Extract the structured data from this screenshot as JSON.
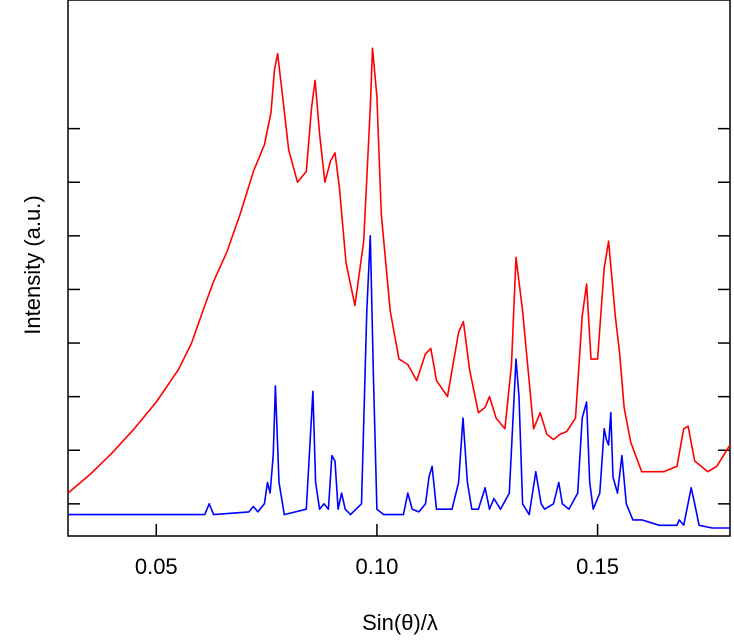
{
  "chart_data": {
    "type": "line",
    "title": "",
    "xlabel": "Sin(θ)/λ",
    "ylabel": "Intensity (a.u.)",
    "xlim": [
      0.03,
      0.18
    ],
    "ylim": [
      0,
      10
    ],
    "grid": false,
    "legend": "none",
    "x_tick_labels": [
      "0.05",
      "0.10",
      "0.15"
    ],
    "x_ticks": [
      0.05,
      0.1,
      0.15
    ],
    "y_tick_labels_shown": false,
    "y_ticks": [
      0.6,
      1.6,
      2.6,
      3.6,
      4.6,
      5.6,
      6.6,
      7.6
    ],
    "series": [
      {
        "color": "#ff0000",
        "x": [
          0.03,
          0.035,
          0.04,
          0.045,
          0.05,
          0.055,
          0.058,
          0.061,
          0.063,
          0.066,
          0.069,
          0.072,
          0.0745,
          0.076,
          0.0768,
          0.0775,
          0.0785,
          0.08,
          0.082,
          0.084,
          0.0852,
          0.086,
          0.087,
          0.0882,
          0.0895,
          0.0905,
          0.0915,
          0.093,
          0.095,
          0.097,
          0.0985,
          0.099,
          0.1,
          0.101,
          0.103,
          0.105,
          0.107,
          0.109,
          0.111,
          0.1122,
          0.1135,
          0.116,
          0.1185,
          0.1196,
          0.121,
          0.123,
          0.1245,
          0.1255,
          0.127,
          0.129,
          0.1305,
          0.1315,
          0.133,
          0.1355,
          0.137,
          0.1385,
          0.14,
          0.1415,
          0.143,
          0.145,
          0.1465,
          0.1475,
          0.1485,
          0.15,
          0.1515,
          0.1525,
          0.154,
          0.155,
          0.156,
          0.1575,
          0.16,
          0.165,
          0.168,
          0.1695,
          0.1705,
          0.172,
          0.175,
          0.177,
          0.18
        ],
        "values": [
          0.8,
          1.15,
          1.55,
          2.0,
          2.5,
          3.1,
          3.6,
          4.3,
          4.75,
          5.3,
          6.0,
          6.8,
          7.3,
          7.9,
          8.7,
          9.0,
          8.3,
          7.2,
          6.6,
          6.8,
          8.0,
          8.5,
          7.5,
          6.6,
          7.0,
          7.15,
          6.5,
          5.1,
          4.3,
          5.5,
          8.0,
          9.1,
          8.2,
          6.0,
          4.2,
          3.3,
          3.2,
          2.9,
          3.4,
          3.5,
          2.9,
          2.6,
          3.8,
          4.0,
          3.1,
          2.3,
          2.4,
          2.6,
          2.2,
          2.0,
          3.2,
          5.2,
          4.2,
          2.0,
          2.3,
          1.9,
          1.8,
          1.9,
          1.95,
          2.2,
          4.1,
          4.7,
          3.3,
          3.3,
          5.0,
          5.5,
          4.1,
          3.4,
          2.4,
          1.75,
          1.2,
          1.2,
          1.3,
          2.0,
          2.05,
          1.4,
          1.2,
          1.3,
          1.7
        ]
      },
      {
        "color": "#0000ff",
        "x": [
          0.03,
          0.055,
          0.061,
          0.062,
          0.063,
          0.071,
          0.072,
          0.073,
          0.0745,
          0.0752,
          0.0758,
          0.0765,
          0.077,
          0.0778,
          0.079,
          0.084,
          0.0855,
          0.0861,
          0.087,
          0.088,
          0.089,
          0.0898,
          0.0905,
          0.0912,
          0.092,
          0.0928,
          0.094,
          0.0965,
          0.0977,
          0.0985,
          0.0992,
          0.1,
          0.1015,
          0.106,
          0.107,
          0.108,
          0.1095,
          0.111,
          0.1118,
          0.1125,
          0.1135,
          0.117,
          0.1185,
          0.1195,
          0.1205,
          0.1215,
          0.123,
          0.1245,
          0.1255,
          0.1265,
          0.128,
          0.13,
          0.1315,
          0.1322,
          0.133,
          0.1345,
          0.136,
          0.1372,
          0.138,
          0.14,
          0.1412,
          0.142,
          0.1435,
          0.1455,
          0.1465,
          0.1475,
          0.1482,
          0.149,
          0.1505,
          0.1515,
          0.152,
          0.1525,
          0.153,
          0.1535,
          0.1545,
          0.1555,
          0.1565,
          0.158,
          0.16,
          0.164,
          0.168,
          0.1685,
          0.1695,
          0.1712,
          0.172,
          0.173,
          0.176,
          0.18
        ],
        "values": [
          0.4,
          0.4,
          0.4,
          0.6,
          0.4,
          0.45,
          0.55,
          0.45,
          0.6,
          1.0,
          0.8,
          1.5,
          2.8,
          1.0,
          0.4,
          0.5,
          2.7,
          1.0,
          0.5,
          0.6,
          0.5,
          1.5,
          1.4,
          0.5,
          0.8,
          0.5,
          0.4,
          0.6,
          4.2,
          5.6,
          3.0,
          0.5,
          0.4,
          0.4,
          0.8,
          0.5,
          0.45,
          0.6,
          1.1,
          1.3,
          0.5,
          0.5,
          1.0,
          2.2,
          1.0,
          0.5,
          0.5,
          0.9,
          0.5,
          0.7,
          0.5,
          0.8,
          3.3,
          2.6,
          0.6,
          0.4,
          1.2,
          0.6,
          0.5,
          0.6,
          1.0,
          0.6,
          0.5,
          0.8,
          2.2,
          2.5,
          1.0,
          0.5,
          0.8,
          2.0,
          1.8,
          1.7,
          2.3,
          1.1,
          0.8,
          1.5,
          0.6,
          0.3,
          0.3,
          0.2,
          0.2,
          0.3,
          0.2,
          0.9,
          0.6,
          0.2,
          0.15,
          0.15
        ]
      }
    ]
  }
}
